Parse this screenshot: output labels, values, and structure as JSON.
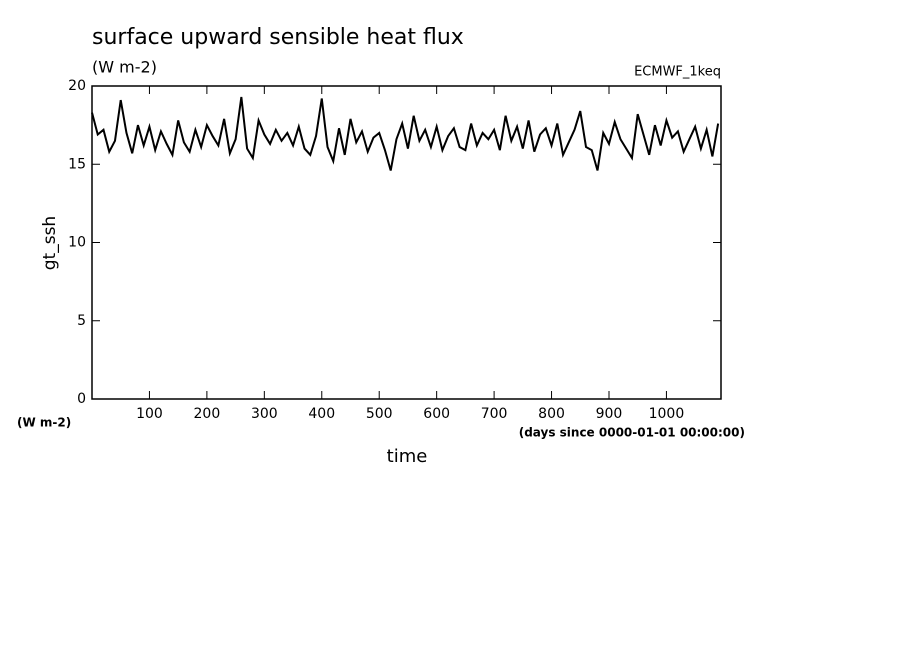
{
  "chart_data": {
    "type": "line",
    "title": "surface upward sensible heat flux",
    "subtitle": "(W m-2)",
    "annotation": "ECMWF_1keq",
    "y_label": "gt_ssh",
    "y_units": "(W m-2)",
    "x_units": "(days since 0000-01-01 00:00:00)",
    "x_label": "time",
    "xlim": [
      0,
      1095
    ],
    "ylim": [
      0,
      20
    ],
    "xticks": [
      100,
      200,
      300,
      400,
      500,
      600,
      700,
      800,
      900,
      1000
    ],
    "yticks": [
      0,
      5,
      10,
      15,
      20
    ],
    "x": [
      0,
      10,
      20,
      30,
      40,
      50,
      60,
      70,
      80,
      90,
      100,
      110,
      120,
      130,
      140,
      150,
      160,
      170,
      180,
      190,
      200,
      210,
      220,
      230,
      240,
      250,
      260,
      270,
      280,
      290,
      300,
      310,
      320,
      330,
      340,
      350,
      360,
      370,
      380,
      390,
      400,
      410,
      420,
      430,
      440,
      450,
      460,
      470,
      480,
      490,
      500,
      510,
      520,
      530,
      540,
      550,
      560,
      570,
      580,
      590,
      600,
      610,
      620,
      630,
      640,
      650,
      660,
      670,
      680,
      690,
      700,
      710,
      720,
      730,
      740,
      750,
      760,
      770,
      780,
      790,
      800,
      810,
      820,
      830,
      840,
      850,
      860,
      870,
      880,
      890,
      900,
      910,
      920,
      930,
      940,
      950,
      960,
      970,
      980,
      990,
      1000,
      1010,
      1020,
      1030,
      1040,
      1050,
      1060,
      1070,
      1080,
      1090
    ],
    "series": [
      {
        "color": "#000000",
        "values": [
          18.3,
          16.9,
          17.2,
          15.8,
          16.5,
          19.1,
          17.0,
          15.7,
          17.5,
          16.2,
          17.4,
          15.9,
          17.1,
          16.3,
          15.6,
          17.8,
          16.4,
          15.8,
          17.2,
          16.1,
          17.5,
          16.8,
          16.2,
          17.9,
          15.7,
          16.6,
          19.3,
          16.0,
          15.4,
          17.8,
          16.9,
          16.3,
          17.2,
          16.5,
          17.0,
          16.2,
          17.4,
          16.0,
          15.6,
          16.8,
          19.2,
          16.1,
          15.2,
          17.3,
          15.6,
          17.9,
          16.4,
          17.1,
          15.8,
          16.7,
          17.0,
          15.9,
          14.6,
          16.6,
          17.6,
          16.0,
          18.1,
          16.5,
          17.2,
          16.1,
          17.4,
          15.9,
          16.8,
          17.3,
          16.1,
          15.9,
          17.6,
          16.2,
          17.0,
          16.6,
          17.2,
          15.9,
          18.1,
          16.5,
          17.4,
          16.0,
          17.8,
          15.8,
          16.9,
          17.3,
          16.2,
          17.6,
          15.6,
          16.4,
          17.2,
          18.4,
          16.1,
          15.9,
          14.6,
          17.0,
          16.3,
          17.7,
          16.6,
          16.0,
          15.4,
          18.2,
          16.9,
          15.6,
          17.5,
          16.2,
          17.8,
          16.7,
          17.1,
          15.8,
          16.6,
          17.4,
          16.0,
          17.2,
          15.5,
          17.6
        ]
      }
    ]
  }
}
